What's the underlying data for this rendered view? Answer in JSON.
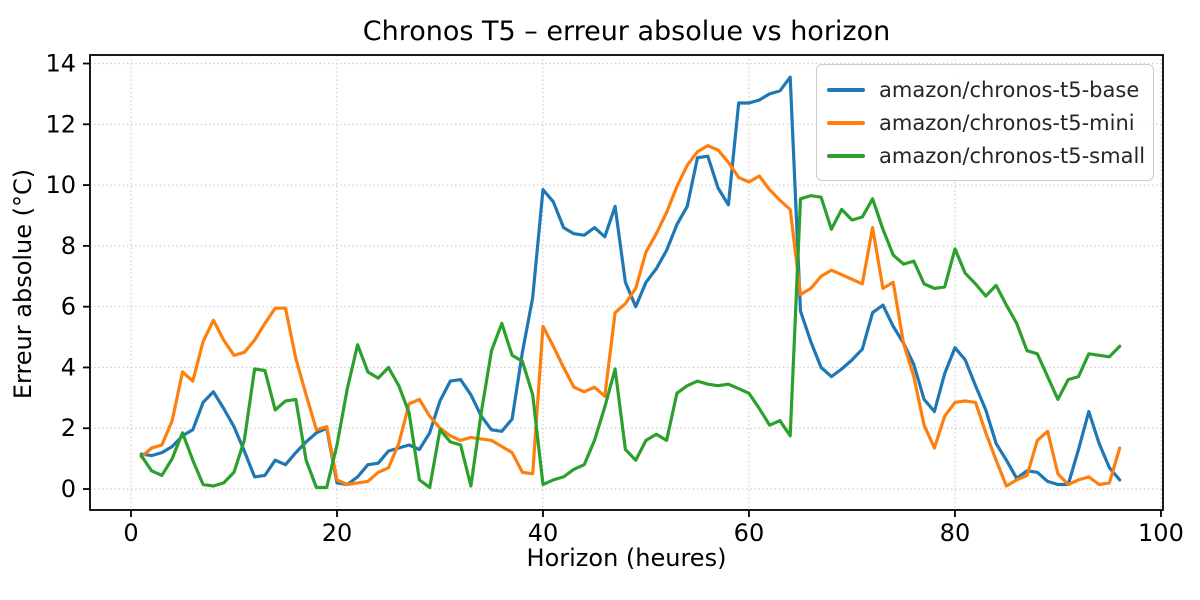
{
  "figure": {
    "background": "#ffffff",
    "plot_border_color": "#000000",
    "grid_color": "#cfcfcf"
  },
  "chart_data": {
    "type": "line",
    "title": "Chronos T5 – erreur absolue vs horizon",
    "xlabel": "Horizon (heures)",
    "ylabel": "Erreur absolue (°C)",
    "x_start": 1,
    "x_step": 1,
    "xlim": [
      -3.98,
      100.2
    ],
    "ylim": [
      -0.69,
      14.28
    ],
    "xticks": [
      0,
      20,
      40,
      60,
      80,
      100
    ],
    "yticks": [
      0,
      2,
      4,
      6,
      8,
      10,
      12,
      14
    ],
    "grid": "dotted",
    "legend_position": "upper right",
    "series": [
      {
        "name": "amazon/chronos-t5-base",
        "color": "#1f77b4",
        "values": [
          1.15,
          1.1,
          1.2,
          1.4,
          1.75,
          1.95,
          2.85,
          3.2,
          2.65,
          2.05,
          1.25,
          0.4,
          0.45,
          0.95,
          0.8,
          1.2,
          1.55,
          1.85,
          2.0,
          0.2,
          0.15,
          0.4,
          0.8,
          0.85,
          1.25,
          1.35,
          1.45,
          1.3,
          1.85,
          2.9,
          3.55,
          3.6,
          3.1,
          2.4,
          1.95,
          1.9,
          2.3,
          4.5,
          6.3,
          9.85,
          9.45,
          8.6,
          8.4,
          8.35,
          8.6,
          8.3,
          9.3,
          6.8,
          6.0,
          6.8,
          7.25,
          7.85,
          8.7,
          9.3,
          10.9,
          10.95,
          9.9,
          9.35,
          12.7,
          12.7,
          12.8,
          13.0,
          13.1,
          13.55,
          5.85,
          4.85,
          4.0,
          3.7,
          3.95,
          4.25,
          4.6,
          5.8,
          6.05,
          5.35,
          4.8,
          4.1,
          2.95,
          2.55,
          3.8,
          4.65,
          4.25,
          3.4,
          2.6,
          1.5,
          0.95,
          0.35,
          0.6,
          0.55,
          0.25,
          0.15,
          0.15,
          1.3,
          2.55,
          1.5,
          0.7,
          0.3
        ]
      },
      {
        "name": "amazon/chronos-t5-mini",
        "color": "#ff7f0e",
        "values": [
          1.05,
          1.35,
          1.45,
          2.25,
          3.85,
          3.55,
          4.85,
          5.55,
          4.9,
          4.4,
          4.5,
          4.9,
          5.45,
          5.95,
          5.95,
          4.3,
          3.1,
          1.95,
          2.05,
          0.3,
          0.15,
          0.2,
          0.25,
          0.55,
          0.7,
          1.5,
          2.8,
          2.95,
          2.4,
          2.0,
          1.75,
          1.6,
          1.7,
          1.65,
          1.6,
          1.4,
          1.2,
          0.55,
          0.5,
          5.35,
          4.7,
          4.0,
          3.35,
          3.2,
          3.35,
          3.05,
          5.8,
          6.1,
          6.6,
          7.8,
          8.4,
          9.1,
          9.95,
          10.65,
          11.1,
          11.3,
          11.15,
          10.75,
          10.25,
          10.1,
          10.3,
          9.85,
          9.5,
          9.2,
          6.4,
          6.6,
          7.0,
          7.2,
          7.05,
          6.9,
          6.75,
          8.6,
          6.6,
          6.8,
          4.8,
          3.7,
          2.1,
          1.35,
          2.4,
          2.85,
          2.9,
          2.85,
          1.85,
          0.95,
          0.1,
          0.3,
          0.45,
          1.6,
          1.9,
          0.5,
          0.15,
          0.3,
          0.4,
          0.15,
          0.2,
          1.35
        ]
      },
      {
        "name": "amazon/chronos-t5-small",
        "color": "#2ca02c",
        "values": [
          1.1,
          0.6,
          0.45,
          1.0,
          1.85,
          0.95,
          0.15,
          0.1,
          0.2,
          0.55,
          1.6,
          3.95,
          3.9,
          2.6,
          2.9,
          2.95,
          0.95,
          0.05,
          0.05,
          1.45,
          3.3,
          4.75,
          3.85,
          3.65,
          4.0,
          3.4,
          2.5,
          0.3,
          0.05,
          1.95,
          1.55,
          1.45,
          0.1,
          2.5,
          4.55,
          5.45,
          4.4,
          4.2,
          3.1,
          0.15,
          0.3,
          0.4,
          0.65,
          0.8,
          1.6,
          2.7,
          3.95,
          1.3,
          0.95,
          1.6,
          1.8,
          1.6,
          3.15,
          3.4,
          3.55,
          3.45,
          3.4,
          3.45,
          3.3,
          3.15,
          2.65,
          2.1,
          2.25,
          1.75,
          9.55,
          9.65,
          9.6,
          8.55,
          9.2,
          8.85,
          8.95,
          9.55,
          8.55,
          7.7,
          7.4,
          7.5,
          6.75,
          6.6,
          6.65,
          7.9,
          7.1,
          6.75,
          6.35,
          6.7,
          6.05,
          5.45,
          4.55,
          4.45,
          3.7,
          2.95,
          3.6,
          3.7,
          4.45,
          4.4,
          4.35,
          4.7
        ]
      }
    ]
  }
}
